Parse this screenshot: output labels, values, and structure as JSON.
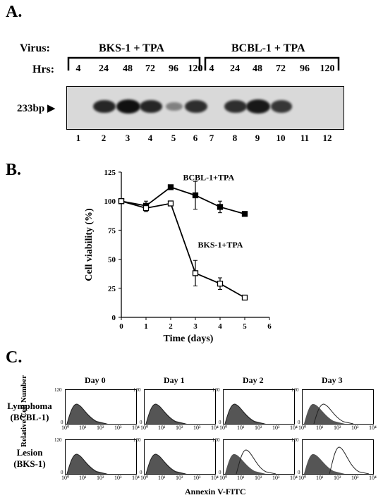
{
  "panels": {
    "a": {
      "label": "A.",
      "virus_label": "Virus:",
      "hrs_label": "Hrs:",
      "group1": "BKS-1 + TPA",
      "group2": "BCBL-1 + TPA",
      "hours": [
        "4",
        "24",
        "48",
        "72",
        "96",
        "120",
        "4",
        "24",
        "48",
        "72",
        "96",
        "120"
      ],
      "marker": "233bp",
      "lanes": [
        "1",
        "2",
        "3",
        "4",
        "5",
        "6",
        "7",
        "8",
        "9",
        "10",
        "11",
        "12"
      ],
      "band_intensity": [
        0,
        0.85,
        1.0,
        0.85,
        0.25,
        0.8,
        0,
        0.8,
        0.95,
        0.75,
        0,
        0
      ]
    },
    "b": {
      "label": "B."
    },
    "c": {
      "label": "C.",
      "days": [
        "Day 0",
        "Day 1",
        "Day 2",
        "Day 3"
      ],
      "rows": [
        {
          "line1": "Lymphoma",
          "line2": "(BCBL-1)"
        },
        {
          "line1": "Lesion",
          "line2": "(BKS-1)"
        }
      ],
      "ylabel": "Relative Cell Number",
      "xlabel": "Annexin V-FITC",
      "ytick_top": "120",
      "ytick_zero": "0",
      "xticks": [
        "10⁰",
        "10¹",
        "10²",
        "10³",
        "10⁴"
      ]
    }
  },
  "chart_data": {
    "type": "line",
    "xlabel": "Time (days)",
    "ylabel": "Cell viability (%)",
    "xlim": [
      0,
      6
    ],
    "ylim": [
      0,
      125
    ],
    "xticks": [
      0,
      1,
      2,
      3,
      4,
      5,
      6
    ],
    "yticks": [
      0,
      25,
      50,
      75,
      100,
      125
    ],
    "series": [
      {
        "name": "BCBL-1+TPA",
        "marker": "filled-square",
        "x": [
          0,
          1,
          2,
          3,
          4,
          5
        ],
        "y": [
          100,
          96,
          112,
          105,
          95,
          89
        ],
        "err": [
          0,
          4,
          0,
          12,
          5,
          0
        ]
      },
      {
        "name": "BKS-1+TPA",
        "marker": "open-square",
        "x": [
          0,
          1,
          2,
          3,
          4,
          5
        ],
        "y": [
          100,
          94,
          98,
          38,
          29,
          17
        ],
        "err": [
          0,
          3,
          0,
          11,
          5,
          0
        ]
      }
    ]
  }
}
